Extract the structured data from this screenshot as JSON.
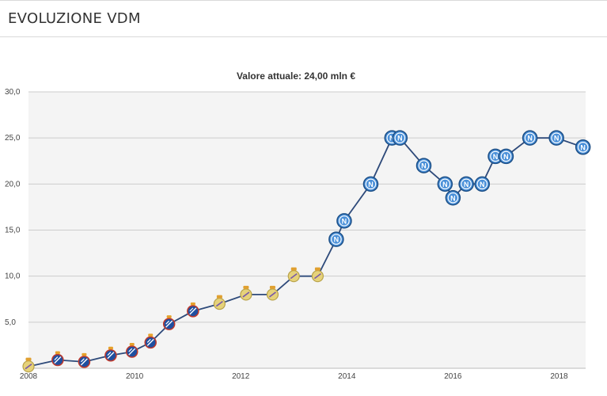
{
  "section": {
    "title": "EVOLUZIONE VDM"
  },
  "chart_data": {
    "type": "line",
    "title": "Valore attuale: 24,00 mln €",
    "xlabel": "",
    "ylabel": "",
    "xlim": [
      2008,
      2018.5
    ],
    "ylim": [
      0,
      30
    ],
    "grid": true,
    "legend": "none",
    "x_ticks": [
      2008,
      2010,
      2012,
      2014,
      2016,
      2018
    ],
    "y_ticks": [
      {
        "value": 5,
        "label": "5,0"
      },
      {
        "value": 10,
        "label": "10,0"
      },
      {
        "value": 15,
        "label": "15,0"
      },
      {
        "value": 20,
        "label": "20,0"
      },
      {
        "value": 25,
        "label": "25,0"
      },
      {
        "value": 30,
        "label": "30,0"
      }
    ],
    "colors": {
      "line": "#2e4a7a",
      "grid": "#cccccc",
      "plot_bg": "#f4f4f4",
      "napoli": "#4a90d9",
      "espanyol": "#1f4fa0",
      "real_madrid": "#e6d27a"
    },
    "series": [
      {
        "points": [
          {
            "x": 2008.0,
            "y": 0.2,
            "club": "real_madrid"
          },
          {
            "x": 2008.55,
            "y": 0.9,
            "club": "espanyol"
          },
          {
            "x": 2009.05,
            "y": 0.7,
            "club": "espanyol"
          },
          {
            "x": 2009.55,
            "y": 1.4,
            "club": "espanyol"
          },
          {
            "x": 2009.95,
            "y": 1.8,
            "club": "espanyol"
          },
          {
            "x": 2010.3,
            "y": 2.8,
            "club": "espanyol"
          },
          {
            "x": 2010.65,
            "y": 4.8,
            "club": "espanyol"
          },
          {
            "x": 2011.1,
            "y": 6.2,
            "club": "espanyol"
          },
          {
            "x": 2011.6,
            "y": 7.0,
            "club": "real_madrid"
          },
          {
            "x": 2012.1,
            "y": 8.0,
            "club": "real_madrid"
          },
          {
            "x": 2012.6,
            "y": 8.0,
            "club": "real_madrid"
          },
          {
            "x": 2013.0,
            "y": 10.0,
            "club": "real_madrid"
          },
          {
            "x": 2013.45,
            "y": 10.0,
            "club": "real_madrid"
          },
          {
            "x": 2013.8,
            "y": 14.0,
            "club": "napoli"
          },
          {
            "x": 2013.95,
            "y": 16.0,
            "club": "napoli"
          },
          {
            "x": 2014.45,
            "y": 20.0,
            "club": "napoli"
          },
          {
            "x": 2014.85,
            "y": 25.0,
            "club": "napoli"
          },
          {
            "x": 2015.0,
            "y": 25.0,
            "club": "napoli"
          },
          {
            "x": 2015.45,
            "y": 22.0,
            "club": "napoli"
          },
          {
            "x": 2015.85,
            "y": 20.0,
            "club": "napoli"
          },
          {
            "x": 2016.0,
            "y": 18.5,
            "club": "napoli"
          },
          {
            "x": 2016.25,
            "y": 20.0,
            "club": "napoli"
          },
          {
            "x": 2016.55,
            "y": 20.0,
            "club": "napoli"
          },
          {
            "x": 2016.8,
            "y": 23.0,
            "club": "napoli"
          },
          {
            "x": 2017.0,
            "y": 23.0,
            "club": "napoli"
          },
          {
            "x": 2017.45,
            "y": 25.0,
            "club": "napoli"
          },
          {
            "x": 2017.95,
            "y": 25.0,
            "club": "napoli"
          },
          {
            "x": 2018.45,
            "y": 24.0,
            "club": "napoli"
          }
        ]
      }
    ]
  }
}
